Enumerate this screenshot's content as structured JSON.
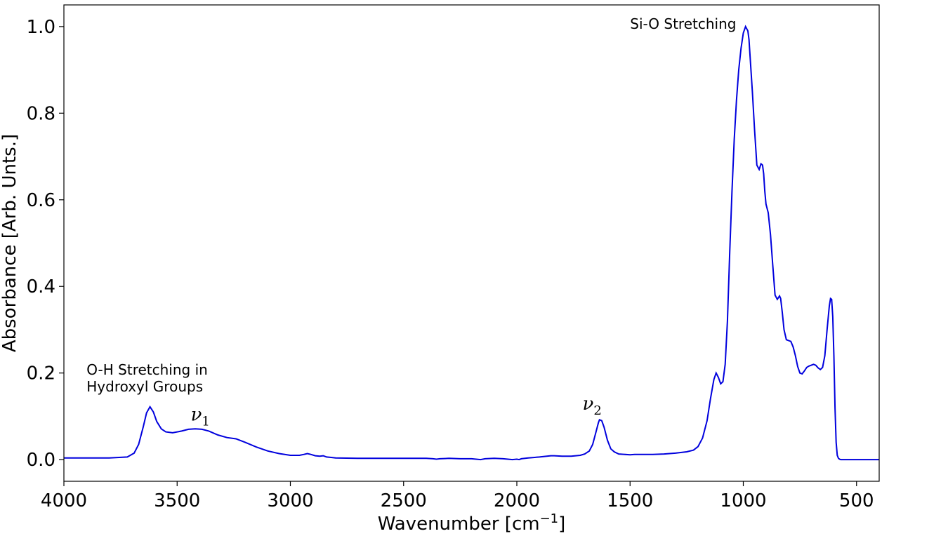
{
  "chart_data": {
    "type": "line",
    "title": "",
    "xlabel": "Wavenumber [cm",
    "xlabel_sup": "−1",
    "xlabel_end": "]",
    "ylabel": "Absorbance [Arb. Unts.]",
    "xlim": [
      4000,
      400
    ],
    "ylim": [
      -0.05,
      1.05
    ],
    "x_reversed": true,
    "grid": false,
    "xticks": [
      4000,
      3500,
      3000,
      2500,
      2000,
      1500,
      1000,
      500
    ],
    "yticks": [
      0.0,
      0.2,
      0.4,
      0.6,
      0.8,
      1.0
    ],
    "xtick_labels": [
      "4000",
      "3500",
      "3000",
      "2500",
      "2000",
      "1500",
      "1000",
      "500"
    ],
    "ytick_labels": [
      "0.0",
      "0.2",
      "0.4",
      "0.6",
      "0.8",
      "1.0"
    ],
    "series": [
      {
        "color": "#0000dd",
        "x": [
          4000,
          3900,
          3800,
          3720,
          3690,
          3670,
          3650,
          3635,
          3620,
          3605,
          3590,
          3570,
          3550,
          3520,
          3480,
          3450,
          3420,
          3390,
          3360,
          3320,
          3280,
          3240,
          3200,
          3150,
          3100,
          3050,
          3000,
          2960,
          2940,
          2925,
          2910,
          2890,
          2870,
          2855,
          2840,
          2820,
          2800,
          2700,
          2600,
          2500,
          2400,
          2370,
          2355,
          2340,
          2300,
          2250,
          2200,
          2180,
          2160,
          2140,
          2100,
          2060,
          2020,
          2000,
          1990,
          1980,
          1950,
          1900,
          1850,
          1835,
          1800,
          1760,
          1720,
          1700,
          1680,
          1665,
          1650,
          1640,
          1635,
          1625,
          1615,
          1600,
          1585,
          1570,
          1550,
          1500,
          1480,
          1460,
          1400,
          1350,
          1300,
          1250,
          1220,
          1200,
          1180,
          1160,
          1145,
          1130,
          1120,
          1110,
          1100,
          1090,
          1080,
          1070,
          1060,
          1050,
          1040,
          1030,
          1020,
          1010,
          1000,
          990,
          980,
          975,
          970,
          960,
          950,
          940,
          930,
          922,
          915,
          910,
          905,
          900,
          890,
          880,
          870,
          860,
          850,
          840,
          835,
          828,
          820,
          810,
          800,
          790,
          780,
          770,
          760,
          750,
          740,
          730,
          720,
          710,
          700,
          690,
          680,
          670,
          660,
          650,
          640,
          630,
          620,
          615,
          610,
          605,
          600,
          595,
          590,
          585,
          580,
          575,
          570,
          550,
          500,
          400
        ],
        "y": [
          0.004,
          0.004,
          0.004,
          0.006,
          0.015,
          0.035,
          0.075,
          0.108,
          0.122,
          0.11,
          0.088,
          0.071,
          0.064,
          0.062,
          0.066,
          0.07,
          0.071,
          0.07,
          0.066,
          0.057,
          0.051,
          0.048,
          0.04,
          0.029,
          0.02,
          0.014,
          0.01,
          0.01,
          0.012,
          0.014,
          0.012,
          0.009,
          0.008,
          0.009,
          0.006,
          0.005,
          0.004,
          0.003,
          0.003,
          0.003,
          0.003,
          0.002,
          0.001,
          0.002,
          0.003,
          0.002,
          0.002,
          0.001,
          0.0,
          0.002,
          0.003,
          0.002,
          0.0,
          0.001,
          0.0,
          0.002,
          0.004,
          0.006,
          0.009,
          0.009,
          0.008,
          0.008,
          0.01,
          0.013,
          0.02,
          0.035,
          0.065,
          0.085,
          0.092,
          0.09,
          0.075,
          0.045,
          0.025,
          0.018,
          0.013,
          0.011,
          0.012,
          0.012,
          0.012,
          0.013,
          0.015,
          0.018,
          0.022,
          0.03,
          0.05,
          0.09,
          0.14,
          0.185,
          0.2,
          0.19,
          0.175,
          0.18,
          0.22,
          0.32,
          0.48,
          0.62,
          0.74,
          0.83,
          0.9,
          0.95,
          0.985,
          1.0,
          0.99,
          0.97,
          0.93,
          0.85,
          0.76,
          0.68,
          0.67,
          0.683,
          0.68,
          0.66,
          0.62,
          0.59,
          0.57,
          0.52,
          0.45,
          0.38,
          0.37,
          0.378,
          0.372,
          0.34,
          0.3,
          0.277,
          0.275,
          0.273,
          0.26,
          0.24,
          0.215,
          0.2,
          0.198,
          0.205,
          0.213,
          0.216,
          0.218,
          0.22,
          0.218,
          0.212,
          0.208,
          0.213,
          0.24,
          0.3,
          0.355,
          0.372,
          0.37,
          0.33,
          0.24,
          0.12,
          0.04,
          0.01,
          0.003,
          0.001,
          0.0,
          0.0,
          0.0,
          0.0
        ]
      }
    ],
    "annotations": [
      {
        "text_lines": [
          "O-H Stretching in",
          "Hydroxyl Groups"
        ],
        "x": 3900,
        "y": 0.17
      },
      {
        "text": "Si-O Stretching",
        "x": 1500,
        "y": 0.995
      },
      {
        "greek": "ν",
        "sub": "1",
        "x": 3440,
        "y": 0.09
      },
      {
        "greek": "ν",
        "sub": "2",
        "x": 1710,
        "y": 0.115
      }
    ]
  }
}
